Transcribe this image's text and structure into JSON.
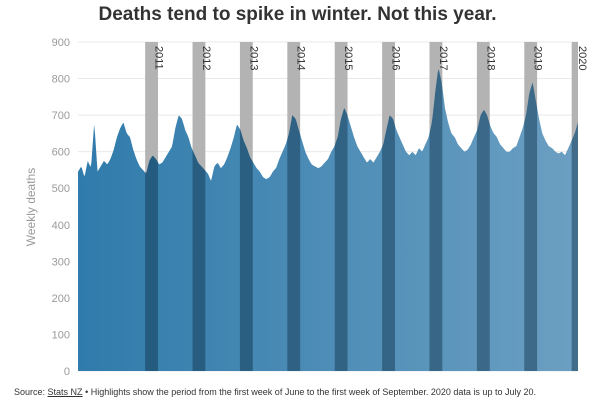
{
  "title": "Deaths tend to spike in winter. Not this year.",
  "footer": {
    "source_label": "Source:",
    "source_link": "Stats NZ",
    "note": "• Highlights show the period from the first week of June to the first week of September. 2020 data is up to July 20."
  },
  "chart_data": {
    "type": "area",
    "title": "Deaths tend to spike in winter. Not this year.",
    "xlabel": "",
    "ylabel": "Weekly deaths",
    "ylim": [
      0,
      900
    ],
    "yticks": [
      0,
      100,
      200,
      300,
      400,
      500,
      600,
      700,
      800,
      900
    ],
    "grid": true,
    "legend": "none",
    "x_start": "2010-01",
    "x_end": "2020-07",
    "years": [
      "2011",
      "2012",
      "2013",
      "2014",
      "2015",
      "2016",
      "2017",
      "2018",
      "2019",
      "2020"
    ],
    "highlight_period": "first week of June to first week of September",
    "series": [
      {
        "values": [
          545,
          560,
          530,
          575,
          555,
          680,
          545,
          560,
          575,
          565,
          580,
          605,
          640,
          665,
          680,
          650,
          640,
          605,
          580,
          560,
          550,
          540,
          575,
          590,
          580,
          565,
          570,
          585,
          600,
          615,
          665,
          700,
          690,
          660,
          640,
          610,
          590,
          570,
          560,
          550,
          540,
          520,
          560,
          570,
          555,
          565,
          585,
          610,
          640,
          675,
          660,
          630,
          610,
          585,
          570,
          555,
          545,
          530,
          525,
          530,
          545,
          555,
          580,
          600,
          620,
          650,
          700,
          690,
          660,
          630,
          600,
          580,
          565,
          560,
          555,
          560,
          570,
          580,
          600,
          615,
          640,
          690,
          720,
          700,
          670,
          640,
          615,
          600,
          585,
          570,
          580,
          570,
          585,
          600,
          620,
          660,
          700,
          690,
          660,
          640,
          620,
          600,
          590,
          600,
          590,
          610,
          600,
          620,
          640,
          680,
          760,
          830,
          790,
          720,
          680,
          650,
          640,
          620,
          610,
          600,
          605,
          620,
          640,
          660,
          700,
          715,
          700,
          670,
          650,
          640,
          620,
          610,
          600,
          600,
          610,
          615,
          640,
          665,
          700,
          760,
          790,
          740,
          690,
          650,
          630,
          615,
          610,
          600,
          595,
          600,
          590,
          610,
          630,
          650,
          680
        ]
      }
    ],
    "colors": {
      "area_start": "#2f7bab",
      "area_end": "#6c9fc2",
      "highlight": "#b3b3b3",
      "grid": "#e9e9e9",
      "axis_text": "#9a9a9a",
      "label_text": "#333333"
    }
  }
}
